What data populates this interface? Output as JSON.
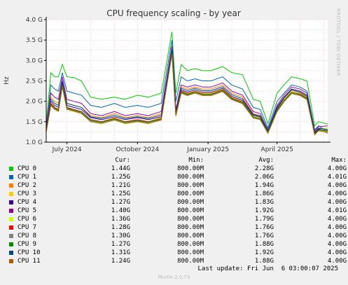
{
  "chart_data": {
    "type": "line",
    "title": "CPU frequency scaling - by year",
    "ylabel": "Hz",
    "ylim": [
      1.0,
      4.0
    ],
    "y_ticks": [
      {
        "value": 1.0,
        "label": "1.0 G"
      },
      {
        "value": 1.5,
        "label": "1.5 G"
      },
      {
        "value": 2.0,
        "label": "2.0 G"
      },
      {
        "value": 2.5,
        "label": "2.5 G"
      },
      {
        "value": 3.0,
        "label": "3.0 G"
      },
      {
        "value": 3.5,
        "label": "3.5 G"
      },
      {
        "value": 4.0,
        "label": "4.0 G"
      }
    ],
    "xlim": [
      "2024-06-04",
      "2025-06-06"
    ],
    "x_ticks": [
      {
        "value": "2024-07-01",
        "label": "July 2024"
      },
      {
        "value": "2024-10-01",
        "label": "October 2024"
      },
      {
        "value": "2025-01-01",
        "label": "January 2025"
      },
      {
        "value": "2025-04-01",
        "label": "April 2025"
      }
    ],
    "grid": true,
    "x_dates": [
      "2024-06-04",
      "2024-06-10",
      "2024-06-15",
      "2024-06-20",
      "2024-06-25",
      "2024-07-01",
      "2024-07-10",
      "2024-07-20",
      "2024-08-01",
      "2024-08-15",
      "2024-09-01",
      "2024-09-15",
      "2024-10-01",
      "2024-10-15",
      "2024-11-01",
      "2024-11-15",
      "2024-11-20",
      "2024-11-27",
      "2024-12-05",
      "2024-12-15",
      "2024-12-25",
      "2025-01-05",
      "2025-01-20",
      "2025-02-01",
      "2025-02-15",
      "2025-03-01",
      "2025-03-10",
      "2025-03-20",
      "2025-04-01",
      "2025-04-10",
      "2025-04-20",
      "2025-05-01",
      "2025-05-10",
      "2025-05-20",
      "2025-05-25",
      "2025-06-06"
    ],
    "series": [
      {
        "name": "CPU 0",
        "values": [
          1.45,
          2.7,
          2.6,
          2.6,
          2.9,
          2.6,
          2.58,
          2.5,
          2.1,
          2.05,
          2.1,
          2.05,
          2.15,
          2.1,
          2.2,
          3.7,
          2.2,
          2.9,
          2.75,
          2.8,
          2.75,
          2.75,
          2.85,
          2.7,
          2.65,
          2.05,
          2.0,
          1.45,
          2.2,
          2.4,
          2.6,
          2.55,
          2.5,
          1.4,
          1.5,
          1.44
        ]
      },
      {
        "name": "CPU 1",
        "values": [
          1.3,
          2.4,
          2.3,
          2.25,
          2.7,
          2.25,
          2.2,
          2.15,
          1.9,
          1.85,
          1.95,
          1.85,
          1.9,
          1.85,
          1.95,
          3.5,
          2.0,
          2.6,
          2.5,
          2.55,
          2.5,
          2.5,
          2.6,
          2.4,
          2.3,
          1.85,
          1.8,
          1.35,
          2.0,
          2.2,
          2.4,
          2.35,
          2.25,
          1.3,
          1.4,
          1.25
        ]
      },
      {
        "name": "CPU 2",
        "values": [
          1.25,
          2.1,
          2.0,
          1.95,
          2.5,
          1.95,
          1.9,
          1.85,
          1.65,
          1.6,
          1.7,
          1.6,
          1.65,
          1.6,
          1.7,
          3.3,
          1.75,
          2.35,
          2.3,
          2.35,
          2.3,
          2.3,
          2.4,
          2.2,
          2.1,
          1.7,
          1.65,
          1.25,
          1.85,
          2.1,
          2.3,
          2.25,
          2.15,
          1.25,
          1.35,
          1.21
        ]
      },
      {
        "name": "CPU 3",
        "values": [
          1.25,
          1.95,
          1.85,
          1.8,
          2.4,
          1.85,
          1.8,
          1.75,
          1.55,
          1.5,
          1.6,
          1.5,
          1.55,
          1.5,
          1.6,
          3.2,
          1.7,
          2.25,
          2.2,
          2.25,
          2.2,
          2.2,
          2.3,
          2.1,
          2.0,
          1.65,
          1.6,
          1.25,
          1.8,
          2.05,
          2.25,
          2.2,
          2.1,
          1.2,
          1.3,
          1.25
        ]
      },
      {
        "name": "CPU 4",
        "values": [
          1.3,
          2.0,
          1.9,
          1.85,
          2.45,
          1.9,
          1.85,
          1.8,
          1.6,
          1.55,
          1.62,
          1.55,
          1.6,
          1.55,
          1.62,
          3.25,
          1.72,
          2.28,
          2.22,
          2.28,
          2.22,
          2.22,
          2.32,
          2.12,
          2.02,
          1.66,
          1.62,
          1.26,
          1.82,
          2.08,
          2.28,
          2.22,
          2.12,
          1.22,
          1.32,
          1.27
        ]
      },
      {
        "name": "CPU 5",
        "values": [
          1.4,
          2.2,
          2.1,
          2.05,
          2.6,
          2.05,
          2.0,
          1.95,
          1.7,
          1.65,
          1.75,
          1.65,
          1.7,
          1.65,
          1.75,
          3.35,
          1.8,
          2.4,
          2.35,
          2.4,
          2.35,
          2.35,
          2.45,
          2.25,
          2.15,
          1.75,
          1.7,
          1.3,
          1.9,
          2.15,
          2.35,
          2.3,
          2.2,
          1.28,
          1.38,
          1.4
        ]
      },
      {
        "name": "CPU 6",
        "values": [
          1.35,
          1.9,
          1.8,
          1.75,
          2.35,
          1.8,
          1.75,
          1.7,
          1.5,
          1.45,
          1.55,
          1.45,
          1.5,
          1.45,
          1.55,
          3.15,
          1.65,
          2.2,
          2.15,
          2.2,
          2.15,
          2.15,
          2.25,
          2.05,
          1.95,
          1.6,
          1.55,
          1.22,
          1.75,
          2.0,
          2.2,
          2.15,
          2.05,
          1.18,
          1.28,
          1.36
        ]
      },
      {
        "name": "CPU 7",
        "values": [
          1.28,
          1.95,
          1.85,
          1.8,
          2.4,
          1.85,
          1.8,
          1.75,
          1.55,
          1.5,
          1.58,
          1.5,
          1.55,
          1.5,
          1.58,
          3.2,
          1.68,
          2.25,
          2.18,
          2.24,
          2.18,
          2.18,
          2.28,
          2.08,
          1.98,
          1.62,
          1.58,
          1.24,
          1.78,
          2.02,
          2.22,
          2.18,
          2.08,
          1.2,
          1.3,
          1.28
        ]
      },
      {
        "name": "CPU 8",
        "values": [
          1.3,
          1.92,
          1.82,
          1.78,
          2.38,
          1.82,
          1.78,
          1.72,
          1.52,
          1.48,
          1.56,
          1.48,
          1.52,
          1.48,
          1.56,
          3.18,
          1.66,
          2.22,
          2.16,
          2.22,
          2.16,
          2.16,
          2.26,
          2.06,
          1.96,
          1.61,
          1.57,
          1.23,
          1.77,
          2.01,
          2.21,
          2.16,
          2.06,
          1.19,
          1.29,
          1.3
        ]
      },
      {
        "name": "CPU 9",
        "values": [
          1.27,
          1.92,
          1.84,
          1.78,
          2.39,
          1.84,
          1.78,
          1.74,
          1.54,
          1.49,
          1.57,
          1.49,
          1.53,
          1.49,
          1.57,
          3.19,
          1.67,
          2.23,
          2.17,
          2.23,
          2.17,
          2.17,
          2.27,
          2.07,
          1.97,
          1.62,
          1.58,
          1.24,
          1.78,
          2.02,
          2.22,
          2.17,
          2.07,
          1.2,
          1.3,
          1.27
        ]
      },
      {
        "name": "CPU 10",
        "values": [
          1.31,
          2.05,
          1.95,
          1.9,
          2.5,
          1.95,
          1.9,
          1.85,
          1.62,
          1.58,
          1.66,
          1.58,
          1.62,
          1.58,
          1.66,
          3.28,
          1.74,
          2.32,
          2.26,
          2.32,
          2.26,
          2.26,
          2.36,
          2.16,
          2.06,
          1.68,
          1.64,
          1.28,
          1.86,
          2.1,
          2.3,
          2.25,
          2.15,
          1.24,
          1.34,
          1.31
        ]
      },
      {
        "name": "CPU 11",
        "values": [
          1.24,
          1.9,
          1.8,
          1.76,
          2.36,
          1.8,
          1.76,
          1.7,
          1.5,
          1.46,
          1.54,
          1.46,
          1.5,
          1.46,
          1.54,
          3.16,
          1.64,
          2.2,
          2.14,
          2.2,
          2.14,
          2.14,
          2.24,
          2.04,
          1.94,
          1.59,
          1.55,
          1.22,
          1.75,
          1.99,
          2.19,
          2.14,
          2.04,
          1.18,
          1.28,
          1.24
        ]
      }
    ]
  },
  "legend": {
    "headers": {
      "cur": "Cur:",
      "min": "Min:",
      "avg": "Avg:",
      "max": "Max:"
    },
    "rows": [
      {
        "name": "CPU 0",
        "color": "#00cc00",
        "cur": "1.44G",
        "min": "800.00M",
        "avg": "2.28G",
        "max": "4.00G"
      },
      {
        "name": "CPU 1",
        "color": "#0066b3",
        "cur": "1.25G",
        "min": "800.00M",
        "avg": "2.06G",
        "max": "4.01G"
      },
      {
        "name": "CPU 2",
        "color": "#ff8000",
        "cur": "1.21G",
        "min": "800.00M",
        "avg": "1.94G",
        "max": "4.00G"
      },
      {
        "name": "CPU 3",
        "color": "#ffcc00",
        "cur": "1.25G",
        "min": "800.00M",
        "avg": "1.86G",
        "max": "4.00G"
      },
      {
        "name": "CPU 4",
        "color": "#330099",
        "cur": "1.27G",
        "min": "800.00M",
        "avg": "1.83G",
        "max": "4.00G"
      },
      {
        "name": "CPU 5",
        "color": "#990099",
        "cur": "1.40G",
        "min": "800.00M",
        "avg": "1.92G",
        "max": "4.01G"
      },
      {
        "name": "CPU 6",
        "color": "#ccff00",
        "cur": "1.36G",
        "min": "800.00M",
        "avg": "1.79G",
        "max": "4.00G"
      },
      {
        "name": "CPU 7",
        "color": "#ff0000",
        "cur": "1.28G",
        "min": "800.00M",
        "avg": "1.76G",
        "max": "4.00G"
      },
      {
        "name": "CPU 8",
        "color": "#808080",
        "cur": "1.30G",
        "min": "800.00M",
        "avg": "1.76G",
        "max": "4.00G"
      },
      {
        "name": "CPU 9",
        "color": "#008f00",
        "cur": "1.27G",
        "min": "800.00M",
        "avg": "1.88G",
        "max": "4.00G"
      },
      {
        "name": "CPU 10",
        "color": "#00487d",
        "cur": "1.31G",
        "min": "800.00M",
        "avg": "1.92G",
        "max": "4.00G"
      },
      {
        "name": "CPU 11",
        "color": "#b35a00",
        "cur": "1.24G",
        "min": "800.00M",
        "avg": "1.88G",
        "max": "4.00G"
      }
    ]
  },
  "last_update": "Last update: Fri Jun  6 03:00:07 2025",
  "footer": "Munin 2.0.73",
  "side_label": "RRDTOOL / TOBI OETIKER",
  "colors": {
    "background": "#f0f0f0",
    "plot_bg": "#ffffff",
    "grid": "#e8a0a0",
    "axis": "#000000"
  }
}
